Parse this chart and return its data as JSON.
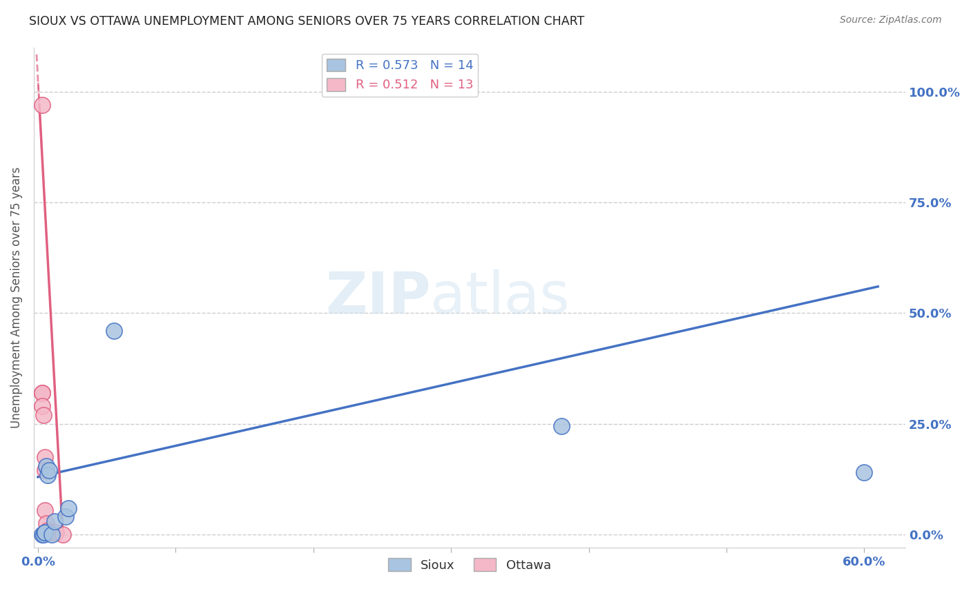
{
  "title": "SIOUX VS OTTAWA UNEMPLOYMENT AMONG SENIORS OVER 75 YEARS CORRELATION CHART",
  "source": "Source: ZipAtlas.com",
  "ylabel": "Unemployment Among Seniors over 75 years",
  "xlim": [
    -0.003,
    0.63
  ],
  "ylim": [
    -0.03,
    1.1
  ],
  "xticks": [
    0.0,
    0.1,
    0.2,
    0.3,
    0.4,
    0.5,
    0.6
  ],
  "ytick_labels": [
    "0.0%",
    "25.0%",
    "50.0%",
    "75.0%",
    "100.0%"
  ],
  "yticks": [
    0.0,
    0.25,
    0.5,
    0.75,
    1.0
  ],
  "grid_color": "#cccccc",
  "watermark_zip": "ZIP",
  "watermark_atlas": "atlas",
  "sioux_color": "#a8c4e0",
  "ottawa_color": "#f4b8c8",
  "sioux_line_color": "#4472c4",
  "ottawa_line_color": "#e06080",
  "sioux_R": 0.573,
  "sioux_N": 14,
  "ottawa_R": 0.512,
  "ottawa_N": 13,
  "sioux_x": [
    0.003,
    0.004,
    0.005,
    0.005,
    0.006,
    0.007,
    0.008,
    0.01,
    0.012,
    0.02,
    0.022,
    0.055,
    0.38,
    0.6
  ],
  "sioux_y": [
    0.0,
    0.0,
    0.005,
    0.005,
    0.155,
    0.135,
    0.145,
    0.0,
    0.03,
    0.04,
    0.06,
    0.46,
    0.245,
    0.14
  ],
  "ottawa_x": [
    0.003,
    0.003,
    0.003,
    0.003,
    0.004,
    0.005,
    0.005,
    0.005,
    0.006,
    0.007,
    0.009,
    0.013,
    0.018
  ],
  "ottawa_y": [
    0.97,
    0.32,
    0.32,
    0.29,
    0.27,
    0.175,
    0.145,
    0.055,
    0.025,
    0.01,
    0.005,
    0.005,
    0.0
  ],
  "sioux_trend_x0": 0.0,
  "sioux_trend_x1": 0.61,
  "sioux_trend_y0": 0.13,
  "sioux_trend_y1": 0.56,
  "ottawa_trend_x0": 0.001,
  "ottawa_trend_x1": 0.018,
  "ottawa_trend_y0": 0.97,
  "ottawa_trend_y1": 0.0,
  "title_color": "#222222",
  "tick_color": "#4472c4",
  "source_color": "#777777"
}
